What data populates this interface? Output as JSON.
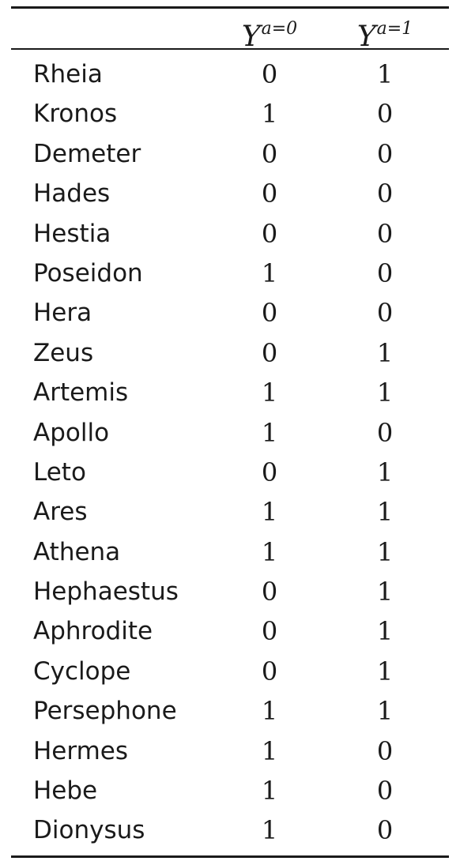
{
  "header": {
    "name_col": "",
    "col_a0_base": "Y",
    "col_a0_sup": "a=0",
    "col_a1_base": "Y",
    "col_a1_sup": "a=1"
  },
  "rows": [
    {
      "name": "Rheia",
      "y_a0": "0",
      "y_a1": "1"
    },
    {
      "name": "Kronos",
      "y_a0": "1",
      "y_a1": "0"
    },
    {
      "name": "Demeter",
      "y_a0": "0",
      "y_a1": "0"
    },
    {
      "name": "Hades",
      "y_a0": "0",
      "y_a1": "0"
    },
    {
      "name": "Hestia",
      "y_a0": "0",
      "y_a1": "0"
    },
    {
      "name": "Poseidon",
      "y_a0": "1",
      "y_a1": "0"
    },
    {
      "name": "Hera",
      "y_a0": "0",
      "y_a1": "0"
    },
    {
      "name": "Zeus",
      "y_a0": "0",
      "y_a1": "1"
    },
    {
      "name": "Artemis",
      "y_a0": "1",
      "y_a1": "1"
    },
    {
      "name": "Apollo",
      "y_a0": "1",
      "y_a1": "0"
    },
    {
      "name": "Leto",
      "y_a0": "0",
      "y_a1": "1"
    },
    {
      "name": "Ares",
      "y_a0": "1",
      "y_a1": "1"
    },
    {
      "name": "Athena",
      "y_a0": "1",
      "y_a1": "1"
    },
    {
      "name": "Hephaestus",
      "y_a0": "0",
      "y_a1": "1"
    },
    {
      "name": "Aphrodite",
      "y_a0": "0",
      "y_a1": "1"
    },
    {
      "name": "Cyclope",
      "y_a0": "0",
      "y_a1": "1"
    },
    {
      "name": "Persephone",
      "y_a0": "1",
      "y_a1": "1"
    },
    {
      "name": "Hermes",
      "y_a0": "1",
      "y_a1": "0"
    },
    {
      "name": "Hebe",
      "y_a0": "1",
      "y_a1": "0"
    },
    {
      "name": "Dionysus",
      "y_a0": "1",
      "y_a1": "0"
    }
  ]
}
